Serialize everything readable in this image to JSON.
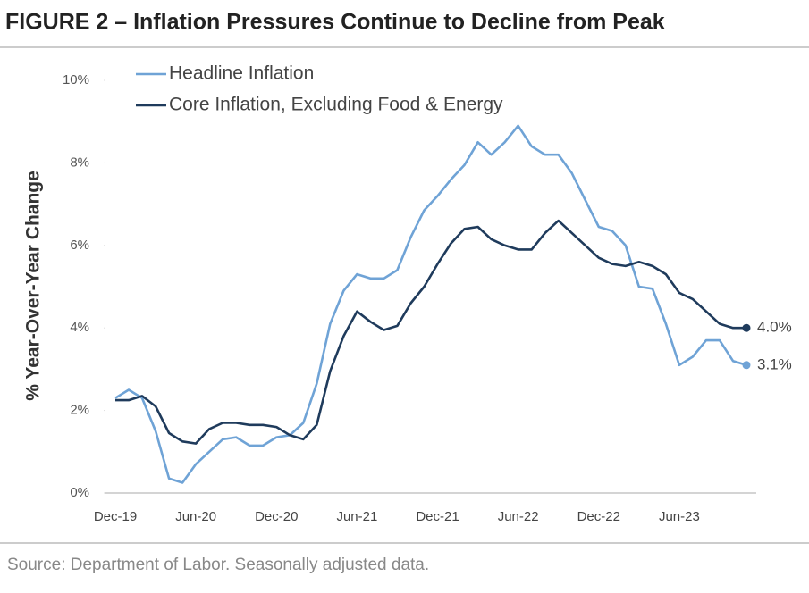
{
  "chart_data": {
    "type": "line",
    "title": "FIGURE 2 – Inflation Pressures Continue to Decline from Peak",
    "y_axis_label": "% Year-Over-Year Change",
    "source": "Source: Department of Labor. Seasonally adjusted data.",
    "categories": [
      "Dec-19",
      null,
      null,
      null,
      null,
      null,
      "Jun-20",
      null,
      null,
      null,
      null,
      null,
      "Dec-20",
      null,
      null,
      null,
      null,
      null,
      "Jun-21",
      null,
      null,
      null,
      null,
      null,
      "Dec-21",
      null,
      null,
      null,
      null,
      null,
      "Jun-22",
      null,
      null,
      null,
      null,
      null,
      "Dec-22",
      null,
      null,
      null,
      null,
      null,
      "Jun-23",
      null,
      null,
      null,
      null,
      null
    ],
    "series": [
      {
        "name": "Headline Inflation",
        "color": "#6fa3d6",
        "end_label": "3.1%",
        "values": [
          2.3,
          2.5,
          2.3,
          1.5,
          0.35,
          0.25,
          0.7,
          1.0,
          1.3,
          1.35,
          1.15,
          1.15,
          1.35,
          1.4,
          1.7,
          2.65,
          4.1,
          4.9,
          5.3,
          5.2,
          5.2,
          5.4,
          6.2,
          6.85,
          7.2,
          7.6,
          7.95,
          8.5,
          8.2,
          8.5,
          8.9,
          8.4,
          8.2,
          8.2,
          7.75,
          7.1,
          6.45,
          6.35,
          6.0,
          5.0,
          4.95,
          4.1,
          3.1,
          3.3,
          3.7,
          3.7,
          3.2,
          3.1
        ]
      },
      {
        "name": "Core Inflation, Excluding Food & Energy",
        "color": "#1f3b5c",
        "end_label": "4.0%",
        "values": [
          2.25,
          2.25,
          2.35,
          2.1,
          1.45,
          1.25,
          1.2,
          1.55,
          1.7,
          1.7,
          1.65,
          1.65,
          1.6,
          1.4,
          1.3,
          1.65,
          2.95,
          3.8,
          4.4,
          4.15,
          3.95,
          4.05,
          4.6,
          5.0,
          5.55,
          6.05,
          6.4,
          6.45,
          6.15,
          6.0,
          5.9,
          5.9,
          6.3,
          6.6,
          6.3,
          6.0,
          5.7,
          5.55,
          5.5,
          5.6,
          5.5,
          5.3,
          4.85,
          4.7,
          4.4,
          4.1,
          4.0,
          4.0
        ]
      }
    ],
    "ylim": [
      0,
      10
    ],
    "yticks": [
      {
        "value": 0,
        "label": "0%"
      },
      {
        "value": 2,
        "label": "2%"
      },
      {
        "value": 4,
        "label": "4%"
      },
      {
        "value": 6,
        "label": "6%"
      },
      {
        "value": 8,
        "label": "8%"
      },
      {
        "value": 10,
        "label": "10%"
      }
    ],
    "grid": false,
    "legend": "top"
  }
}
